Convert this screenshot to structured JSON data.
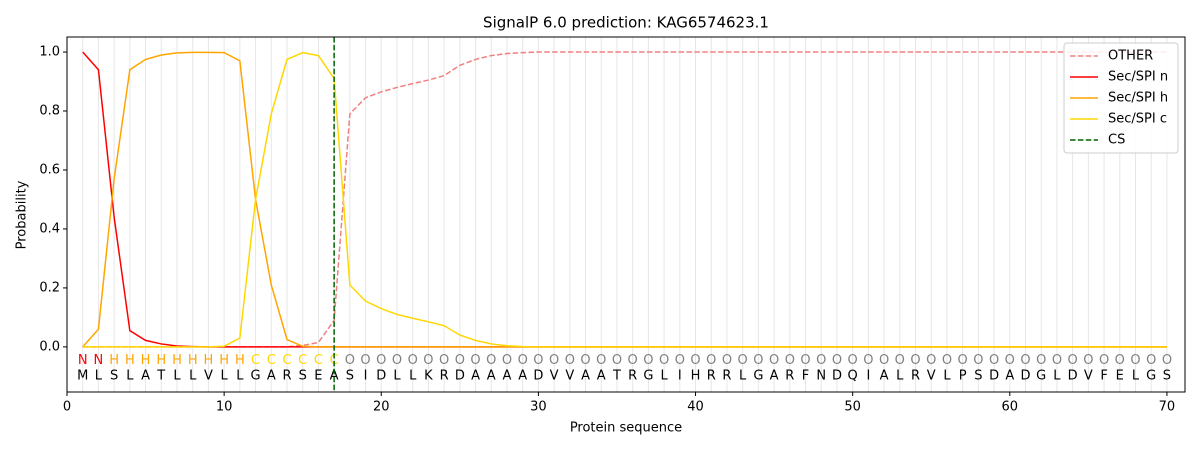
{
  "chart_data": {
    "type": "line",
    "title": "SignalP 6.0 prediction: KAG6574623.1",
    "xlabel": "Protein sequence",
    "ylabel": "Probability",
    "xlim": [
      0,
      71.15
    ],
    "ylim": [
      -0.153,
      1.051
    ],
    "xticks": [
      0,
      10,
      20,
      30,
      40,
      50,
      60,
      70
    ],
    "yticks": [
      {
        "value": 0,
        "label": "0.0"
      },
      {
        "value": 0.2,
        "label": "0.2"
      },
      {
        "value": 0.4,
        "label": "0.4"
      },
      {
        "value": 0.6,
        "label": "0.6"
      },
      {
        "value": 0.8,
        "label": "0.8"
      },
      {
        "value": 1,
        "label": "1.0"
      }
    ],
    "grid": true,
    "legend": "upper right",
    "x": [
      1,
      2,
      3,
      4,
      5,
      6,
      7,
      8,
      9,
      10,
      11,
      12,
      13,
      14,
      15,
      16,
      17,
      18,
      19,
      20,
      21,
      22,
      23,
      24,
      25,
      26,
      27,
      28,
      29,
      30,
      31,
      32,
      33,
      34,
      35,
      36,
      37,
      38,
      39,
      40,
      41,
      42,
      43,
      44,
      45,
      46,
      47,
      48,
      49,
      50,
      51,
      52,
      53,
      54,
      55,
      56,
      57,
      58,
      59,
      60,
      61,
      62,
      63,
      64,
      65,
      66,
      67,
      68,
      69,
      70
    ],
    "sequence": [
      "M",
      "L",
      "S",
      "L",
      "A",
      "T",
      "L",
      "L",
      "V",
      "L",
      "L",
      "G",
      "A",
      "R",
      "S",
      "E",
      "A",
      "S",
      "I",
      "D",
      "L",
      "L",
      "K",
      "R",
      "D",
      "A",
      "A",
      "A",
      "A",
      "D",
      "V",
      "V",
      "A",
      "A",
      "T",
      "R",
      "G",
      "L",
      "I",
      "H",
      "R",
      "R",
      "L",
      "G",
      "A",
      "R",
      "F",
      "N",
      "D",
      "Q",
      "I",
      "A",
      "L",
      "R",
      "V",
      "L",
      "P",
      "S",
      "D",
      "A",
      "D",
      "G",
      "L",
      "D",
      "V",
      "F",
      "E",
      "L",
      "G",
      "S"
    ],
    "labels": [
      "N",
      "N",
      "H",
      "H",
      "H",
      "H",
      "H",
      "H",
      "H",
      "H",
      "H",
      "C",
      "C",
      "C",
      "C",
      "C",
      "C",
      "O",
      "O",
      "O",
      "O",
      "O",
      "O",
      "O",
      "O",
      "O",
      "O",
      "O",
      "O",
      "O",
      "O",
      "O",
      "O",
      "O",
      "O",
      "O",
      "O",
      "O",
      "O",
      "O",
      "O",
      "O",
      "O",
      "O",
      "O",
      "O",
      "O",
      "O",
      "O",
      "O",
      "O",
      "O",
      "O",
      "O",
      "O",
      "O",
      "O",
      "O",
      "O",
      "O",
      "O",
      "O",
      "O",
      "O",
      "O",
      "O",
      "O",
      "O",
      "O",
      "O"
    ],
    "label_colors": {
      "N": "#ff0000",
      "H": "#ffa500",
      "C": "#ffd700",
      "O": "#808080"
    },
    "series": [
      {
        "name": "OTHER",
        "color": "#f08080",
        "dashed": true,
        "values": [
          0,
          0,
          0,
          0,
          0,
          0,
          0,
          0,
          0,
          0,
          0,
          0,
          0,
          0,
          0.005,
          0.015,
          0.09,
          0.79,
          0.845,
          0.865,
          0.88,
          0.893,
          0.905,
          0.92,
          0.955,
          0.975,
          0.988,
          0.995,
          0.998,
          1,
          1,
          1,
          1,
          1,
          1,
          1,
          1,
          1,
          1,
          1,
          1,
          1,
          1,
          1,
          1,
          1,
          1,
          1,
          1,
          1,
          1,
          1,
          1,
          1,
          1,
          1,
          1,
          1,
          1,
          1,
          1,
          1,
          1,
          1,
          1,
          1,
          1,
          1,
          1,
          1
        ]
      },
      {
        "name": "Sec/SPI n",
        "color": "#ff0000",
        "dashed": false,
        "values": [
          1,
          0.94,
          0.44,
          0.055,
          0.022,
          0.01,
          0.003,
          0.001,
          0,
          0,
          0,
          0,
          0,
          0,
          0,
          0,
          0,
          0,
          0,
          0,
          0,
          0,
          0,
          0,
          0,
          0,
          0,
          0,
          0,
          0,
          0,
          0,
          0,
          0,
          0,
          0,
          0,
          0,
          0,
          0,
          0,
          0,
          0,
          0,
          0,
          0,
          0,
          0,
          0,
          0,
          0,
          0,
          0,
          0,
          0,
          0,
          0,
          0,
          0,
          0,
          0,
          0,
          0,
          0,
          0,
          0,
          0,
          0,
          0,
          0
        ]
      },
      {
        "name": "Sec/SPI h",
        "color": "#ffa500",
        "dashed": false,
        "values": [
          0,
          0.06,
          0.57,
          0.94,
          0.975,
          0.99,
          0.997,
          0.999,
          0.999,
          0.998,
          0.97,
          0.5,
          0.21,
          0.025,
          0.002,
          0,
          0,
          0,
          0,
          0,
          0,
          0,
          0,
          0,
          0,
          0,
          0,
          0,
          0,
          0,
          0,
          0,
          0,
          0,
          0,
          0,
          0,
          0,
          0,
          0,
          0,
          0,
          0,
          0,
          0,
          0,
          0,
          0,
          0,
          0,
          0,
          0,
          0,
          0,
          0,
          0,
          0,
          0,
          0,
          0,
          0,
          0,
          0,
          0,
          0,
          0,
          0,
          0,
          0,
          0
        ]
      },
      {
        "name": "Sec/SPI c",
        "color": "#ffd700",
        "dashed": false,
        "values": [
          0,
          0,
          0,
          0,
          0,
          0,
          0,
          0,
          0,
          0.002,
          0.03,
          0.5,
          0.79,
          0.975,
          0.998,
          0.988,
          0.91,
          0.21,
          0.155,
          0.13,
          0.11,
          0.097,
          0.085,
          0.072,
          0.04,
          0.022,
          0.01,
          0.004,
          0.001,
          0,
          0,
          0,
          0,
          0,
          0,
          0,
          0,
          0,
          0,
          0,
          0,
          0,
          0,
          0,
          0,
          0,
          0,
          0,
          0,
          0,
          0,
          0,
          0,
          0,
          0,
          0,
          0,
          0,
          0,
          0,
          0,
          0,
          0,
          0,
          0,
          0,
          0,
          0,
          0,
          0
        ]
      }
    ],
    "cs": {
      "name": "CS",
      "x": 17,
      "color": "#006400"
    }
  }
}
